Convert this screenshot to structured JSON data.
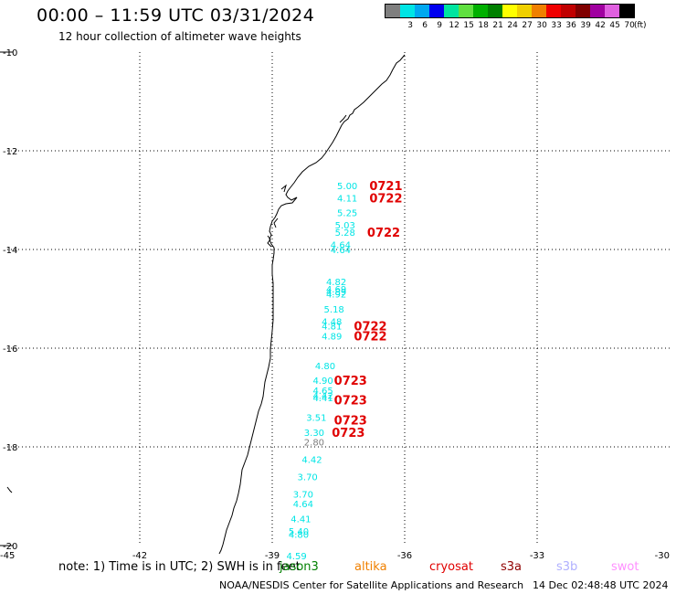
{
  "header": {
    "title": "00:00 – 11:59 UTC 03/31/2024",
    "subtitle": "12 hour collection of altimeter wave heights"
  },
  "legend": {
    "unit": "(ft)",
    "items": [
      {
        "label": "",
        "color": "#7f7f7f"
      },
      {
        "label": "3",
        "color": "#00e5e5"
      },
      {
        "label": "6",
        "color": "#00a8f0"
      },
      {
        "label": "9",
        "color": "#0000f0"
      },
      {
        "label": "12",
        "color": "#00e5a0"
      },
      {
        "label": "15",
        "color": "#60e040"
      },
      {
        "label": "18",
        "color": "#00b000"
      },
      {
        "label": "21",
        "color": "#008000"
      },
      {
        "label": "24",
        "color": "#ffff00"
      },
      {
        "label": "27",
        "color": "#f0d000"
      },
      {
        "label": "30",
        "color": "#f08000"
      },
      {
        "label": "33",
        "color": "#f00000"
      },
      {
        "label": "36",
        "color": "#c00000"
      },
      {
        "label": "39",
        "color": "#800000"
      },
      {
        "label": "42",
        "color": "#a000a0"
      },
      {
        "label": "45",
        "color": "#e060e0"
      },
      {
        "label": "70",
        "color": "#000000"
      }
    ]
  },
  "axes": {
    "x_ticks": [
      "-45",
      "-42",
      "-39",
      "-36",
      "-33",
      "-30"
    ],
    "y_ticks": [
      "-10",
      "-12",
      "-14",
      "-16",
      "-18",
      "-20"
    ]
  },
  "observations": [
    {
      "lon": -37.3,
      "lat": -12.7,
      "value": "5.00",
      "color": "#00e5e5"
    },
    {
      "lon": -37.3,
      "lat": -12.95,
      "value": "4.11",
      "color": "#00e5e5"
    },
    {
      "lon": -37.3,
      "lat": -13.25,
      "value": "5.25",
      "color": "#00e5e5"
    },
    {
      "lon": -37.35,
      "lat": -13.5,
      "value": "5.03",
      "color": "#00e5e5"
    },
    {
      "lon": -37.35,
      "lat": -13.65,
      "value": "5.28",
      "color": "#00e5e5"
    },
    {
      "lon": -37.45,
      "lat": -13.9,
      "value": "4.64",
      "color": "#00e5e5"
    },
    {
      "lon": -37.45,
      "lat": -14.0,
      "value": "4.64",
      "color": "#00e5e5"
    },
    {
      "lon": -37.55,
      "lat": -14.65,
      "value": "4.82",
      "color": "#00e5e5"
    },
    {
      "lon": -37.55,
      "lat": -14.8,
      "value": "4.69",
      "color": "#00e5e5"
    },
    {
      "lon": -37.55,
      "lat": -14.85,
      "value": "4.89",
      "color": "#00e5e5"
    },
    {
      "lon": -37.55,
      "lat": -14.9,
      "value": "4.92",
      "color": "#00e5e5"
    },
    {
      "lon": -37.6,
      "lat": -15.2,
      "value": "5.18",
      "color": "#00e5e5"
    },
    {
      "lon": -37.65,
      "lat": -15.45,
      "value": "4.48",
      "color": "#00e5e5"
    },
    {
      "lon": -37.65,
      "lat": -15.55,
      "value": "4.81",
      "color": "#00e5e5"
    },
    {
      "lon": -37.65,
      "lat": -15.75,
      "value": "4.89",
      "color": "#00e5e5"
    },
    {
      "lon": -37.8,
      "lat": -16.35,
      "value": "4.80",
      "color": "#00e5e5"
    },
    {
      "lon": -37.85,
      "lat": -16.65,
      "value": "4.90",
      "color": "#00e5e5"
    },
    {
      "lon": -37.85,
      "lat": -16.85,
      "value": "4.65",
      "color": "#00e5e5"
    },
    {
      "lon": -37.85,
      "lat": -16.95,
      "value": "4.42",
      "color": "#00e5e5"
    },
    {
      "lon": -37.85,
      "lat": -17.0,
      "value": "4.41",
      "color": "#00e5e5"
    },
    {
      "lon": -38.0,
      "lat": -17.4,
      "value": "3.51",
      "color": "#00e5e5"
    },
    {
      "lon": -38.05,
      "lat": -17.7,
      "value": "3.30",
      "color": "#00e5e5"
    },
    {
      "lon": -38.05,
      "lat": -17.9,
      "value": "2.80",
      "color": "#7f7f7f"
    },
    {
      "lon": -38.1,
      "lat": -18.25,
      "value": "4.42",
      "color": "#00e5e5"
    },
    {
      "lon": -38.2,
      "lat": -18.6,
      "value": "3.70",
      "color": "#00e5e5"
    },
    {
      "lon": -38.3,
      "lat": -18.95,
      "value": "3.70",
      "color": "#00e5e5"
    },
    {
      "lon": -38.3,
      "lat": -19.15,
      "value": "4.64",
      "color": "#00e5e5"
    },
    {
      "lon": -38.35,
      "lat": -19.45,
      "value": "4.41",
      "color": "#00e5e5"
    },
    {
      "lon": -38.4,
      "lat": -19.7,
      "value": "5.40",
      "color": "#00e5e5"
    },
    {
      "lon": -38.4,
      "lat": -19.77,
      "value": "4.80",
      "color": "#00e5e5"
    },
    {
      "lon": -38.45,
      "lat": -20.2,
      "value": "4.59",
      "color": "#00e5e5"
    }
  ],
  "passes": [
    {
      "lon": -36.8,
      "lat": -12.7,
      "time": "0721",
      "color": "#e00000"
    },
    {
      "lon": -36.8,
      "lat": -12.95,
      "time": "0722",
      "color": "#e00000"
    },
    {
      "lon": -36.85,
      "lat": -13.65,
      "time": "0722",
      "color": "#e00000"
    },
    {
      "lon": -37.15,
      "lat": -15.55,
      "time": "0722",
      "color": "#e00000"
    },
    {
      "lon": -37.15,
      "lat": -15.75,
      "time": "0722",
      "color": "#e00000"
    },
    {
      "lon": -37.6,
      "lat": -16.65,
      "time": "0723",
      "color": "#e00000"
    },
    {
      "lon": -37.6,
      "lat": -17.05,
      "time": "0723",
      "color": "#e00000"
    },
    {
      "lon": -37.6,
      "lat": -17.45,
      "time": "0723",
      "color": "#e00000"
    },
    {
      "lon": -37.65,
      "lat": -17.7,
      "time": "0723",
      "color": "#e00000"
    }
  ],
  "footer": {
    "note": "note:  1) Time is in UTC; 2) SWH is in feet",
    "satellites": [
      {
        "name": "jason3",
        "color": "#008000"
      },
      {
        "name": "altika",
        "color": "#f08000"
      },
      {
        "name": "cryosat",
        "color": "#e00000"
      },
      {
        "name": "s3a",
        "color": "#900000"
      },
      {
        "name": "s3b",
        "color": "#b0b0ff"
      },
      {
        "name": "swot",
        "color": "#ff90ff"
      }
    ],
    "credit": "NOAA/NESDIS Center for Satellite Applications and Research",
    "timestamp": "14 Dec 02:48:48 UTC 2024"
  }
}
